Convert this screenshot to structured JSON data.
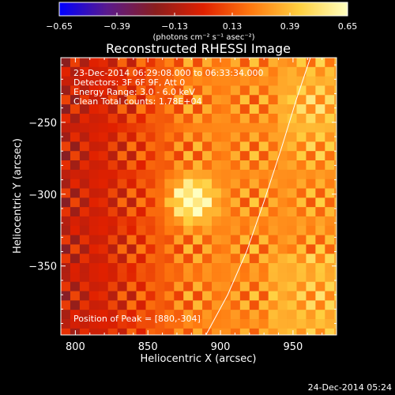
{
  "chart_data": {
    "type": "heatmap",
    "title": "Reconstructed RHESSI Image",
    "xlabel": "Heliocentric X (arcsec)",
    "ylabel": "Heliocentric Y (arcsec)",
    "xlim": [
      790,
      980
    ],
    "ylim": [
      -398,
      -205
    ],
    "x_ticks": [
      800,
      850,
      900,
      950
    ],
    "y_ticks": [
      -250,
      -300,
      -350
    ],
    "x_tick_labels": [
      "800",
      "850",
      "900",
      "950"
    ],
    "y_tick_labels": [
      "−250",
      "−300",
      "−350"
    ],
    "colorbar": {
      "range": [
        -0.65,
        0.65
      ],
      "ticks": [
        -0.65,
        -0.39,
        -0.13,
        0.13,
        0.39,
        0.65
      ],
      "tick_labels": [
        "−0.65",
        "−0.39",
        "−0.13",
        "0.13",
        "0.39",
        "0.65"
      ],
      "units": "(photons cm⁻² s⁻¹ asec⁻²)",
      "colormap": [
        "#0000ff",
        "#5a1a8c",
        "#8a1e1e",
        "#e02000",
        "#ff7a10",
        "#ffd040",
        "#ffffc0"
      ]
    },
    "annotations": [
      "23-Dec-2014 06:29:08.000 to 06:33:34.000",
      "Detectors: 3F 6F 9F, Att 0",
      "Energy Range: 3.0 - 6.0 keV",
      "Clean     Total counts: 1.78E+04"
    ],
    "peak_label": "Position of Peak = [880,-304]",
    "peak": {
      "x": 880,
      "y": -304,
      "value": 0.65
    },
    "limb_curve": [
      {
        "x": 890,
        "y": -398
      },
      {
        "x": 905,
        "y": -370
      },
      {
        "x": 918,
        "y": -340
      },
      {
        "x": 930,
        "y": -305
      },
      {
        "x": 942,
        "y": -268
      },
      {
        "x": 952,
        "y": -235
      },
      {
        "x": 962,
        "y": -205
      }
    ]
  },
  "footer_timestamp": "24-Dec-2014 05:24"
}
